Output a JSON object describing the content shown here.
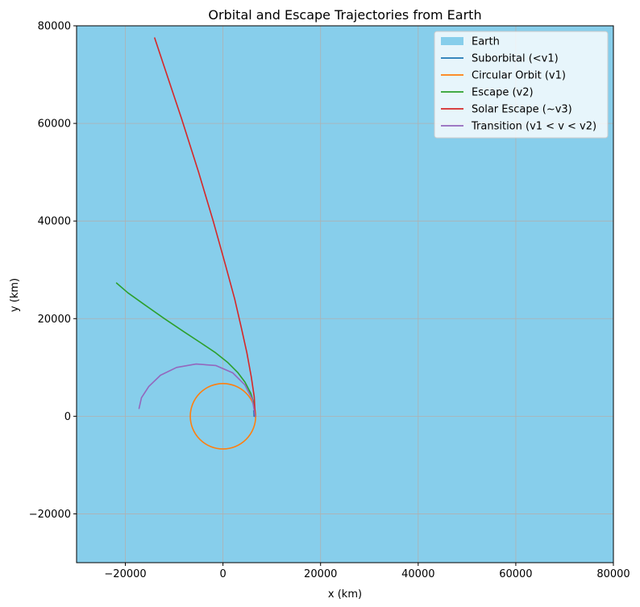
{
  "chart_data": {
    "type": "line",
    "title": "Orbital and Escape Trajectories from Earth",
    "xlabel": "x (km)",
    "ylabel": "y (km)",
    "xlim": [
      -30000,
      80000
    ],
    "ylim": [
      -30000,
      80000
    ],
    "xticks": [
      -20000,
      0,
      20000,
      40000,
      60000,
      80000
    ],
    "yticks": [
      -20000,
      0,
      20000,
      40000,
      60000,
      80000
    ],
    "grid": true,
    "legend_position": "top-right",
    "background_fill": {
      "name": "Earth",
      "color": "#87ceeb"
    },
    "series": [
      {
        "name": "Suborbital (<v1)",
        "color": "#1f77b4",
        "x": [
          6371,
          6360,
          6330,
          6290
        ],
        "y": [
          0,
          400,
          800,
          1100
        ]
      },
      {
        "name": "Circular Orbit (v1)",
        "color": "#ff7f0e",
        "circle": {
          "cx": 0,
          "cy": 0,
          "r": 6700
        }
      },
      {
        "name": "Escape (v2)",
        "color": "#2ca02c",
        "x": [
          6600,
          6300,
          5700,
          4500,
          3000,
          1000,
          -1500,
          -4500,
          -8000,
          -12000,
          -16000,
          -19500,
          -21800
        ],
        "y": [
          0,
          2700,
          4700,
          7000,
          9000,
          11000,
          13000,
          15000,
          17300,
          20000,
          22800,
          25300,
          27300
        ]
      },
      {
        "name": "Solar Escape (~v3)",
        "color": "#d62728",
        "x": [
          6600,
          6400,
          5800,
          4900,
          3800,
          2400,
          500,
          -2000,
          -5000,
          -8500,
          -12000,
          -14000
        ],
        "y": [
          0,
          4000,
          8000,
          13000,
          18000,
          24000,
          31000,
          40000,
          50000,
          61000,
          71500,
          77500
        ]
      },
      {
        "name": "Transition (v1 < v < v2)",
        "color": "#9467bd",
        "x": [
          6600,
          6000,
          4500,
          2000,
          -1500,
          -5500,
          -9500,
          -12800,
          -15200,
          -16700,
          -17200
        ],
        "y": [
          0,
          3500,
          6400,
          8900,
          10400,
          10700,
          10000,
          8400,
          6100,
          3800,
          1600
        ]
      }
    ]
  }
}
